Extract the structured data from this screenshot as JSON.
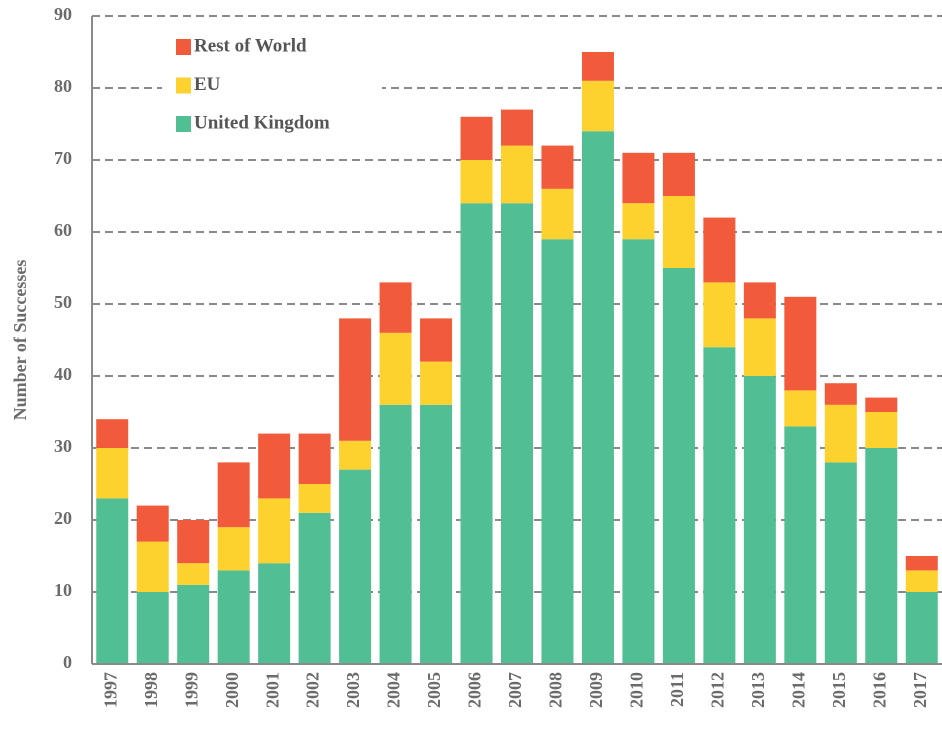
{
  "chart_data": {
    "type": "stacked_bar",
    "y_label": "Number of Successes",
    "categories": [
      "1997",
      "1998",
      "1999",
      "2000",
      "2001",
      "2002",
      "2003",
      "2004",
      "2005",
      "2006",
      "2007",
      "2008",
      "2009",
      "2010",
      "2011",
      "2012",
      "2013",
      "2014",
      "2015",
      "2016",
      "2017"
    ],
    "series": [
      {
        "name": "United Kingdom",
        "color": "#52be94",
        "values": [
          23,
          10,
          11,
          13,
          14,
          21,
          27,
          36,
          36,
          64,
          64,
          59,
          74,
          59,
          55,
          44,
          40,
          33,
          28,
          30,
          10
        ]
      },
      {
        "name": "EU",
        "color": "#fdd22f",
        "values": [
          7,
          7,
          3,
          6,
          9,
          4,
          4,
          10,
          6,
          6,
          8,
          7,
          7,
          5,
          10,
          9,
          8,
          5,
          8,
          5,
          3
        ]
      },
      {
        "name": "Rest of World",
        "color": "#f15a3a",
        "values": [
          4,
          5,
          6,
          9,
          9,
          7,
          17,
          7,
          6,
          6,
          5,
          6,
          4,
          7,
          6,
          9,
          5,
          13,
          3,
          2,
          2
        ]
      }
    ],
    "ylim": [
      0,
      90
    ],
    "yticks": [
      0,
      10,
      20,
      30,
      40,
      50,
      60,
      70,
      80,
      90
    ],
    "grid": true,
    "legend": "upper left"
  }
}
